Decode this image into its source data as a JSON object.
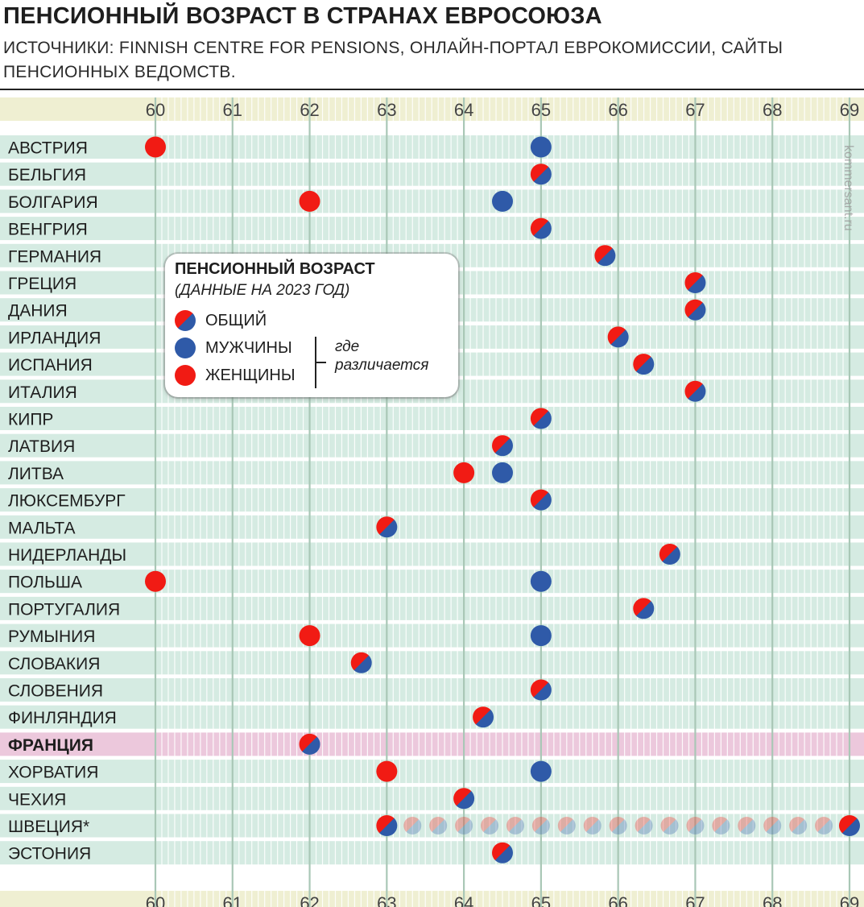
{
  "header": {
    "title": "ПЕНСИОННЫЙ ВОЗРАСТ В СТРАНАХ ЕВРОСОЮЗА",
    "subtitle": "ИСТОЧНИКИ: FINNISH CENTRE FOR PENSIONS, ОНЛАЙН-ПОРТАЛ ЕВРОКОМИССИИ, САЙТЫ ПЕНСИОННЫХ ВЕДОМСТВ."
  },
  "legend": {
    "title": "ПЕНСИОННЫЙ ВОЗРАСТ",
    "subtitle": "(ДАННЫЕ НА 2023 ГОД)",
    "general": "ОБЩИЙ",
    "men": "МУЖЧИНЫ",
    "women": "ЖЕНЩИНЫ",
    "note": "где различается"
  },
  "watermark": "kommersant.ru",
  "colors": {
    "men": "#2f5aa8",
    "women": "#f11b14",
    "row": "#d5ebe2",
    "row_highlight": "#ecc8dc",
    "axis_band": "#efefd2",
    "grid": "#ffffff"
  },
  "chart_data": {
    "type": "scatter",
    "title": "ПЕНСИОННЫЙ ВОЗРАСТ В СТРАНАХ ЕВРОСОЮЗА",
    "xlabel": "",
    "ylabel": "",
    "xlim": [
      60,
      69
    ],
    "xticks": [
      60,
      61,
      62,
      63,
      64,
      65,
      66,
      67,
      68,
      69
    ],
    "highlight": "ФРАНЦИЯ",
    "countries": [
      {
        "name": "АВСТРИЯ",
        "women": 60,
        "men": 65
      },
      {
        "name": "БЕЛЬГИЯ",
        "general": 65
      },
      {
        "name": "БОЛГАРИЯ",
        "women": 62,
        "men": 64.5
      },
      {
        "name": "ВЕНГРИЯ",
        "general": 65
      },
      {
        "name": "ГЕРМАНИЯ",
        "general": 65.83
      },
      {
        "name": "ГРЕЦИЯ",
        "general": 67
      },
      {
        "name": "ДАНИЯ",
        "general": 67
      },
      {
        "name": "ИРЛАНДИЯ",
        "general": 66
      },
      {
        "name": "ИСПАНИЯ",
        "general": 66.33
      },
      {
        "name": "ИТАЛИЯ",
        "general": 67
      },
      {
        "name": "КИПР",
        "general": 65
      },
      {
        "name": "ЛАТВИЯ",
        "general": 64.5
      },
      {
        "name": "ЛИТВА",
        "women": 64,
        "men": 64.5
      },
      {
        "name": "ЛЮКСЕМБУРГ",
        "general": 65
      },
      {
        "name": "МАЛЬТА",
        "general": 63
      },
      {
        "name": "НИДЕРЛАНДЫ",
        "general": 66.67
      },
      {
        "name": "ПОЛЬША",
        "women": 60,
        "men": 65
      },
      {
        "name": "ПОРТУГАЛИЯ",
        "general": 66.33
      },
      {
        "name": "РУМЫНИЯ",
        "women": 62,
        "men": 65
      },
      {
        "name": "СЛОВАКИЯ",
        "general": 62.67
      },
      {
        "name": "СЛОВЕНИЯ",
        "general": 65
      },
      {
        "name": "ФИНЛЯНДИЯ",
        "general": 64.25
      },
      {
        "name": "ФРАНЦИЯ",
        "general": 62
      },
      {
        "name": "ХОРВАТИЯ",
        "women": 63,
        "men": 65
      },
      {
        "name": "ЧЕХИЯ",
        "general": 64
      },
      {
        "name": "ШВЕЦИЯ*",
        "general": 63,
        "general_max": 69,
        "range": true
      },
      {
        "name": "ЭСТОНИЯ",
        "general": 64.5
      }
    ]
  }
}
